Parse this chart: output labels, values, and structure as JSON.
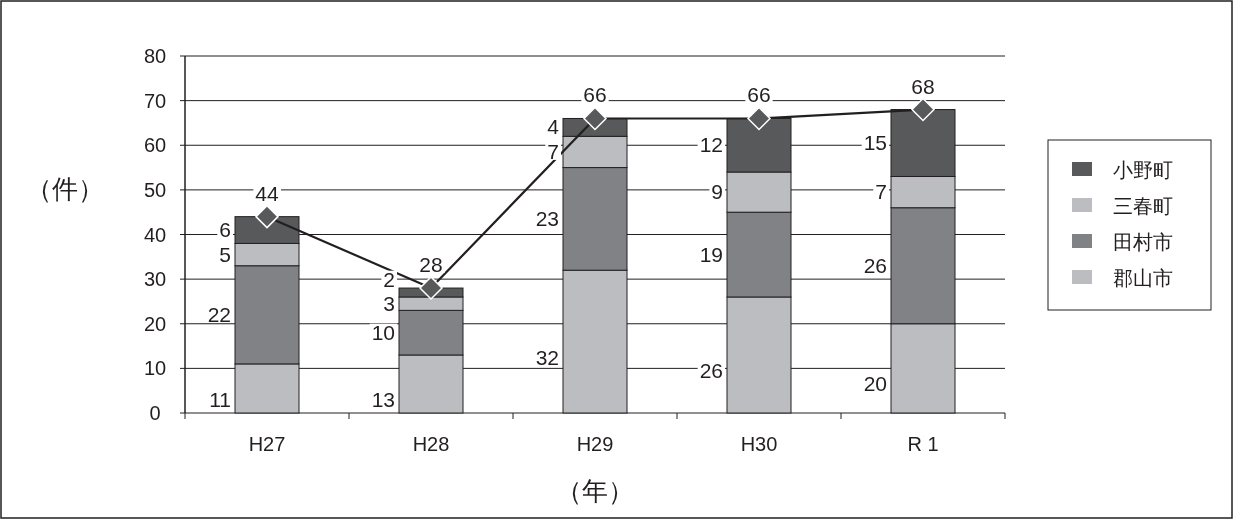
{
  "chart_data": {
    "type": "bar",
    "stacked": true,
    "xlabel": "（年）",
    "ylabel": "（件）",
    "categories": [
      "H27",
      "H28",
      "H29",
      "H30",
      "R 1"
    ],
    "series": [
      {
        "name": "郡山市",
        "color": "#bcbdc1",
        "values": [
          11,
          13,
          32,
          26,
          20
        ]
      },
      {
        "name": "田村市",
        "color": "#808285",
        "values": [
          22,
          10,
          23,
          19,
          26
        ]
      },
      {
        "name": "三春町",
        "color": "#bcbdc1",
        "values": [
          5,
          3,
          7,
          9,
          7
        ]
      },
      {
        "name": "小野町",
        "color": "#58595b",
        "values": [
          6,
          2,
          4,
          12,
          15
        ]
      },
      {
        "type": "line",
        "color": "#231f20",
        "marker": "diamond",
        "values": [
          44,
          28,
          66,
          66,
          68
        ]
      }
    ],
    "ylim": [
      0,
      80
    ],
    "yticks": [
      0,
      10,
      20,
      30,
      40,
      50,
      60,
      70,
      80
    ],
    "grid": "y",
    "legend": "right",
    "data_labels": true
  }
}
